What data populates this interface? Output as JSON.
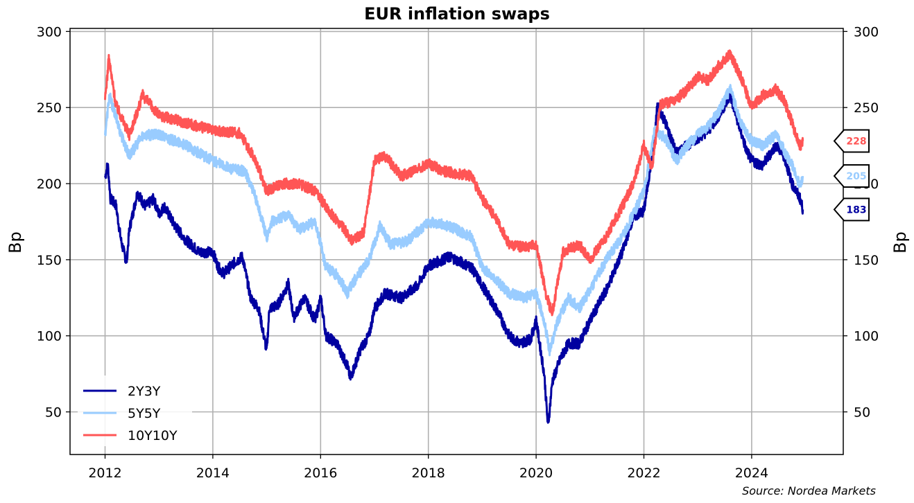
{
  "chart_data": {
    "type": "line",
    "title": "EUR inflation swaps",
    "xlabel": "",
    "ylabel": "Bp",
    "ylabel_right": "Bp",
    "xlim": [
      2011.35,
      2025.7
    ],
    "ylim": [
      22,
      302
    ],
    "x_ticks": [
      2012,
      2014,
      2016,
      2018,
      2020,
      2022,
      2024
    ],
    "x_tick_labels": [
      "2012",
      "2014",
      "2016",
      "2018",
      "2020",
      "2022",
      "2024"
    ],
    "y_ticks": [
      50,
      100,
      150,
      200,
      250,
      300
    ],
    "y_tick_labels": [
      "50",
      "100",
      "150",
      "200",
      "250",
      "300"
    ],
    "grid": true,
    "legend_position": "lower-left",
    "source": "Source: Nordea Markets",
    "series": [
      {
        "name": "2Y3Y",
        "color": "#0000a0",
        "end_label": "183",
        "x": [
          2012.0,
          2012.05,
          2012.1,
          2012.2,
          2012.3,
          2012.4,
          2012.45,
          2012.6,
          2012.75,
          2012.9,
          2013.0,
          2013.1,
          2013.3,
          2013.5,
          2013.75,
          2014.0,
          2014.1,
          2014.2,
          2014.4,
          2014.55,
          2014.7,
          2014.85,
          2015.0,
          2015.05,
          2015.2,
          2015.4,
          2015.5,
          2015.7,
          2015.9,
          2016.0,
          2016.1,
          2016.3,
          2016.5,
          2016.55,
          2016.75,
          2016.9,
          2017.0,
          2017.2,
          2017.5,
          2017.8,
          2018.0,
          2018.4,
          2018.8,
          2019.0,
          2019.3,
          2019.5,
          2019.7,
          2019.9,
          2020.0,
          2020.15,
          2020.22,
          2020.3,
          2020.45,
          2020.6,
          2020.8,
          2021.0,
          2021.3,
          2021.6,
          2021.8,
          2022.0,
          2022.2,
          2022.25,
          2022.4,
          2022.6,
          2022.8,
          2023.0,
          2023.2,
          2023.4,
          2023.6,
          2023.75,
          2023.9,
          2024.0,
          2024.2,
          2024.45,
          2024.6,
          2024.75,
          2024.9,
          2024.95
        ],
        "values": [
          204,
          213,
          190,
          186,
          162,
          148,
          170,
          194,
          185,
          190,
          180,
          185,
          172,
          163,
          155,
          155,
          145,
          141,
          148,
          152,
          125,
          118,
          90,
          118,
          120,
          134,
          112,
          125,
          110,
          125,
          100,
          95,
          80,
          72,
          92,
          100,
          118,
          128,
          125,
          133,
          146,
          152,
          145,
          133,
          115,
          100,
          95,
          98,
          110,
          75,
          40,
          70,
          85,
          95,
          95,
          110,
          130,
          155,
          178,
          182,
          230,
          252,
          240,
          220,
          225,
          230,
          235,
          245,
          258,
          240,
          222,
          215,
          212,
          225,
          218,
          200,
          190,
          183
        ]
      },
      {
        "name": "5Y5Y",
        "color": "#99ccff",
        "end_label": "205",
        "x": [
          2012.0,
          2012.08,
          2012.3,
          2012.45,
          2012.7,
          2013.0,
          2013.5,
          2014.0,
          2014.3,
          2014.6,
          2014.8,
          2015.0,
          2015.1,
          2015.4,
          2015.6,
          2015.9,
          2016.1,
          2016.3,
          2016.5,
          2016.6,
          2016.9,
          2017.1,
          2017.3,
          2017.6,
          2018.0,
          2018.4,
          2018.8,
          2019.0,
          2019.3,
          2019.5,
          2019.8,
          2020.0,
          2020.15,
          2020.25,
          2020.4,
          2020.6,
          2020.8,
          2021.0,
          2021.3,
          2021.6,
          2021.8,
          2022.0,
          2022.2,
          2022.4,
          2022.6,
          2022.8,
          2023.0,
          2023.2,
          2023.4,
          2023.6,
          2023.8,
          2024.0,
          2024.2,
          2024.45,
          2024.6,
          2024.75,
          2024.9,
          2024.95
        ],
        "values": [
          232,
          258,
          232,
          218,
          232,
          232,
          225,
          215,
          210,
          208,
          190,
          165,
          175,
          180,
          170,
          175,
          145,
          140,
          128,
          135,
          150,
          172,
          160,
          162,
          175,
          172,
          165,
          145,
          135,
          128,
          125,
          128,
          110,
          90,
          110,
          125,
          118,
          130,
          150,
          165,
          180,
          195,
          235,
          230,
          215,
          225,
          232,
          238,
          248,
          262,
          240,
          228,
          225,
          232,
          222,
          212,
          198,
          205
        ]
      },
      {
        "name": "10Y10Y",
        "color": "#ff5555",
        "end_label": "228",
        "x": [
          2012.0,
          2012.07,
          2012.2,
          2012.45,
          2012.7,
          2013.0,
          2013.5,
          2014.0,
          2014.5,
          2014.8,
          2015.0,
          2015.3,
          2015.6,
          2015.9,
          2016.2,
          2016.4,
          2016.6,
          2016.8,
          2017.0,
          2017.2,
          2017.5,
          2018.0,
          2018.3,
          2018.8,
          2019.0,
          2019.3,
          2019.5,
          2019.8,
          2020.0,
          2020.2,
          2020.3,
          2020.5,
          2020.8,
          2021.0,
          2021.3,
          2021.6,
          2021.8,
          2022.0,
          2022.15,
          2022.3,
          2022.6,
          2022.8,
          2023.0,
          2023.2,
          2023.4,
          2023.6,
          2023.8,
          2024.0,
          2024.2,
          2024.45,
          2024.6,
          2024.75,
          2024.9,
          2024.95
        ],
        "values": [
          255,
          282,
          252,
          232,
          258,
          245,
          240,
          235,
          233,
          215,
          195,
          200,
          200,
          195,
          180,
          172,
          162,
          168,
          215,
          218,
          205,
          213,
          208,
          205,
          190,
          175,
          160,
          158,
          160,
          125,
          115,
          155,
          160,
          150,
          165,
          185,
          200,
          225,
          210,
          252,
          255,
          262,
          270,
          268,
          278,
          285,
          270,
          250,
          258,
          262,
          255,
          240,
          225,
          228
        ]
      }
    ]
  }
}
